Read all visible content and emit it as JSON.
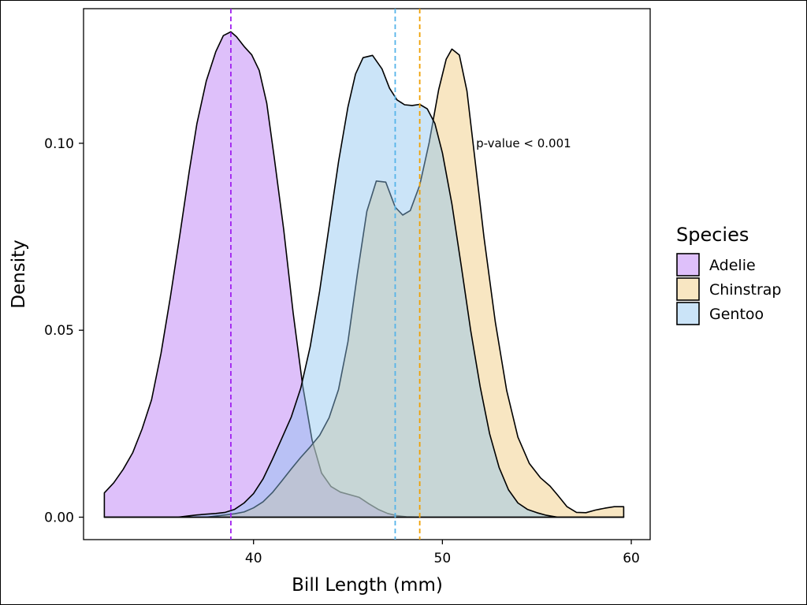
{
  "chart_data": {
    "type": "area",
    "xlabel": "Bill Length (mm)",
    "ylabel": "Density",
    "xlim": [
      31,
      61
    ],
    "ylim": [
      -0.006,
      0.136
    ],
    "x_ticks": [
      40,
      50,
      60
    ],
    "x_tick_labels": [
      "40",
      "50",
      "60"
    ],
    "y_ticks": [
      0.0,
      0.05,
      0.1
    ],
    "y_tick_labels": [
      "0.00",
      "0.05",
      "0.10"
    ],
    "grid": false,
    "annotation": {
      "text": "p-value < 0.001",
      "x": 54.3,
      "y": 0.1
    },
    "legend": {
      "title": "Species",
      "placement": "right",
      "entries": [
        "Adelie",
        "Chinstrap",
        "Gentoo"
      ]
    },
    "series": [
      {
        "name": "Adelie",
        "color": "#a020f0",
        "fill": "rgba(190,130,245,0.5)",
        "mean": 38.8,
        "points": [
          [
            32.1,
            0.0065
          ],
          [
            32.6,
            0.0092
          ],
          [
            33.1,
            0.0128
          ],
          [
            33.6,
            0.0172
          ],
          [
            34.1,
            0.0236
          ],
          [
            34.6,
            0.0314
          ],
          [
            35.1,
            0.0438
          ],
          [
            35.6,
            0.0589
          ],
          [
            36.1,
            0.0755
          ],
          [
            36.6,
            0.0926
          ],
          [
            37.0,
            0.1052
          ],
          [
            37.5,
            0.1167
          ],
          [
            38.0,
            0.1245
          ],
          [
            38.4,
            0.1288
          ],
          [
            38.8,
            0.1298
          ],
          [
            39.1,
            0.1285
          ],
          [
            39.5,
            0.1259
          ],
          [
            39.9,
            0.1237
          ],
          [
            40.3,
            0.1195
          ],
          [
            40.7,
            0.1107
          ],
          [
            41.1,
            0.096
          ],
          [
            41.6,
            0.0769
          ],
          [
            42.1,
            0.0546
          ],
          [
            42.6,
            0.0353
          ],
          [
            43.1,
            0.0206
          ],
          [
            43.6,
            0.0118
          ],
          [
            44.1,
            0.0082
          ],
          [
            44.6,
            0.0067
          ],
          [
            45.1,
            0.006
          ],
          [
            45.6,
            0.0053
          ],
          [
            46.1,
            0.0036
          ],
          [
            46.6,
            0.0021
          ],
          [
            47.1,
            0.001
          ],
          [
            47.6,
            0.0004
          ],
          [
            48.1,
            0.0001
          ],
          [
            49.0,
            0.0
          ],
          [
            59.6,
            0.0
          ]
        ]
      },
      {
        "name": "Chinstrap",
        "color": "#f0a000",
        "fill": "rgba(240,200,120,0.45)",
        "mean": 48.8,
        "points": [
          [
            32.1,
            0.0
          ],
          [
            37.5,
            0.0
          ],
          [
            38.0,
            0.0003
          ],
          [
            38.5,
            0.0006
          ],
          [
            39.0,
            0.0009
          ],
          [
            39.5,
            0.0014
          ],
          [
            40.0,
            0.0025
          ],
          [
            40.5,
            0.0041
          ],
          [
            41.0,
            0.0066
          ],
          [
            41.5,
            0.0097
          ],
          [
            42.0,
            0.0129
          ],
          [
            42.5,
            0.016
          ],
          [
            43.0,
            0.0188
          ],
          [
            43.5,
            0.0219
          ],
          [
            44.0,
            0.0266
          ],
          [
            44.5,
            0.0342
          ],
          [
            45.0,
            0.0469
          ],
          [
            45.5,
            0.0651
          ],
          [
            46.0,
            0.0818
          ],
          [
            46.5,
            0.0899
          ],
          [
            47.0,
            0.0896
          ],
          [
            47.5,
            0.0829
          ],
          [
            47.9,
            0.0808
          ],
          [
            48.3,
            0.082
          ],
          [
            48.8,
            0.0888
          ],
          [
            49.3,
            0.1002
          ],
          [
            49.8,
            0.1143
          ],
          [
            50.2,
            0.1225
          ],
          [
            50.5,
            0.1252
          ],
          [
            50.9,
            0.1236
          ],
          [
            51.3,
            0.114
          ],
          [
            51.7,
            0.0967
          ],
          [
            52.2,
            0.0749
          ],
          [
            52.8,
            0.0522
          ],
          [
            53.4,
            0.0339
          ],
          [
            54.0,
            0.0214
          ],
          [
            54.6,
            0.0144
          ],
          [
            55.2,
            0.0105
          ],
          [
            55.7,
            0.0083
          ],
          [
            56.1,
            0.0059
          ],
          [
            56.6,
            0.0028
          ],
          [
            57.1,
            0.0013
          ],
          [
            57.6,
            0.0012
          ],
          [
            58.1,
            0.0019
          ],
          [
            58.6,
            0.0024
          ],
          [
            59.1,
            0.0028
          ],
          [
            59.6,
            0.0028
          ]
        ]
      },
      {
        "name": "Gentoo",
        "color": "#56b4e9",
        "fill": "rgba(140,195,240,0.45)",
        "mean": 47.5,
        "points": [
          [
            32.1,
            0.0
          ],
          [
            36.0,
            0.0
          ],
          [
            36.5,
            0.0003
          ],
          [
            37.0,
            0.0006
          ],
          [
            37.5,
            0.0008
          ],
          [
            38.0,
            0.001
          ],
          [
            38.5,
            0.0013
          ],
          [
            39.0,
            0.0021
          ],
          [
            39.5,
            0.0038
          ],
          [
            40.0,
            0.0063
          ],
          [
            40.5,
            0.0102
          ],
          [
            41.0,
            0.0155
          ],
          [
            41.5,
            0.0211
          ],
          [
            42.0,
            0.0268
          ],
          [
            42.5,
            0.0345
          ],
          [
            43.0,
            0.0456
          ],
          [
            43.5,
            0.0605
          ],
          [
            44.0,
            0.0778
          ],
          [
            44.5,
            0.0951
          ],
          [
            45.0,
            0.1097
          ],
          [
            45.4,
            0.1185
          ],
          [
            45.8,
            0.1229
          ],
          [
            46.3,
            0.1235
          ],
          [
            46.8,
            0.1199
          ],
          [
            47.2,
            0.1147
          ],
          [
            47.6,
            0.1116
          ],
          [
            48.0,
            0.1103
          ],
          [
            48.4,
            0.1101
          ],
          [
            48.8,
            0.1104
          ],
          [
            49.2,
            0.1092
          ],
          [
            49.6,
            0.1053
          ],
          [
            50.0,
            0.0974
          ],
          [
            50.5,
            0.0838
          ],
          [
            51.0,
            0.0672
          ],
          [
            51.5,
            0.0499
          ],
          [
            52.0,
            0.0349
          ],
          [
            52.5,
            0.0223
          ],
          [
            53.0,
            0.0133
          ],
          [
            53.5,
            0.0073
          ],
          [
            54.0,
            0.0038
          ],
          [
            54.5,
            0.0021
          ],
          [
            55.0,
            0.0012
          ],
          [
            55.5,
            0.0005
          ],
          [
            56.1,
            0.0
          ],
          [
            59.6,
            0.0
          ]
        ]
      }
    ]
  }
}
